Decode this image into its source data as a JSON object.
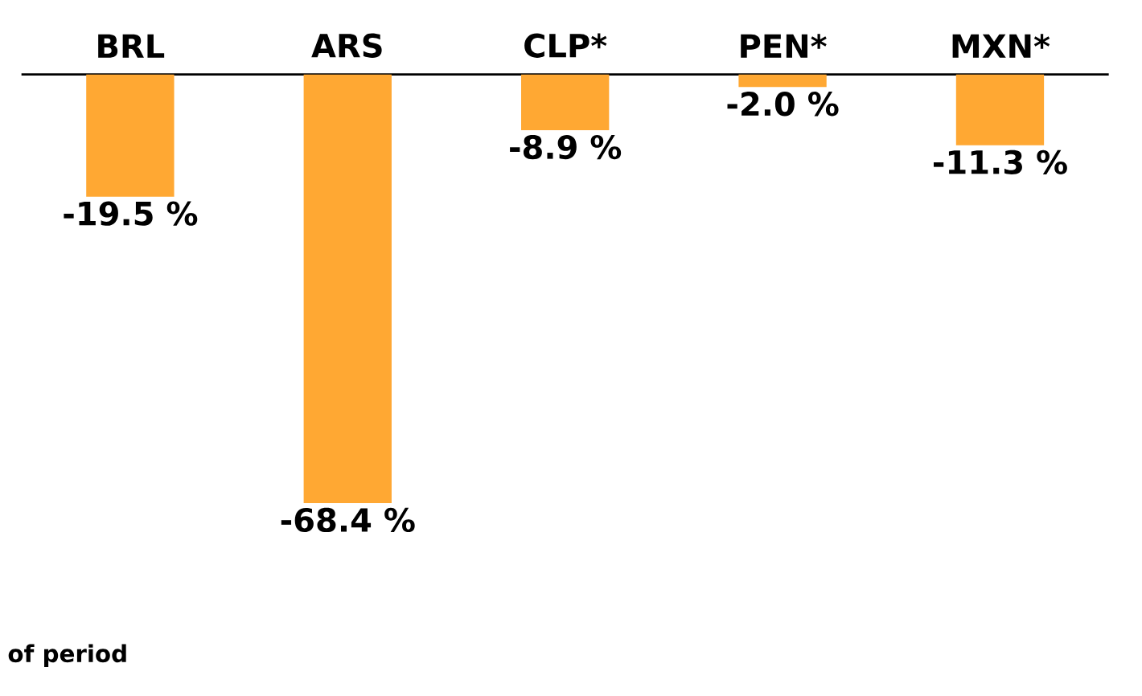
{
  "chart_data": {
    "type": "bar",
    "categories": [
      "BRL",
      "ARS",
      "CLP*",
      "PEN*",
      "MXN*"
    ],
    "values": [
      -19.5,
      -68.4,
      -8.9,
      -2.0,
      -11.3
    ],
    "value_labels": [
      "-19.5 %",
      "-68.4 %",
      "-8.9 %",
      "-2.0 %",
      "-11.3 %"
    ],
    "color": "#ffa833",
    "tick_labels": "x",
    "annotations": [
      "of period"
    ]
  }
}
